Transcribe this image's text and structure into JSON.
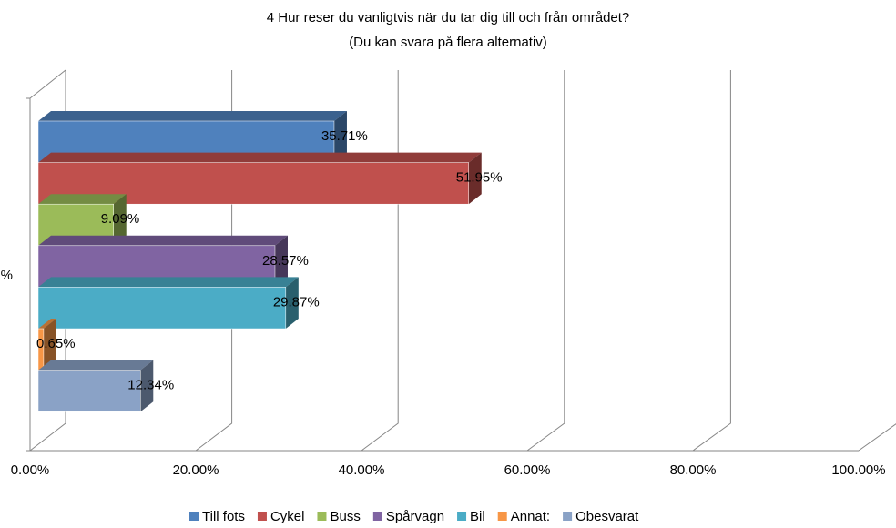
{
  "chart_data": {
    "type": "bar",
    "orientation": "horizontal",
    "title": "4 Hur reser du vanligtvis när du tar dig till och från området?",
    "subtitle": "(Du kan svara på flera alternativ)",
    "categories": [
      "%"
    ],
    "series": [
      {
        "name": "Till fots",
        "color": "#4f81bd",
        "values": [
          35.71
        ],
        "value_labels": [
          "35.71%"
        ]
      },
      {
        "name": "Cykel",
        "color": "#c0504d",
        "values": [
          51.95
        ],
        "value_labels": [
          "51.95%"
        ]
      },
      {
        "name": "Buss",
        "color": "#9bbb59",
        "values": [
          9.09
        ],
        "value_labels": [
          "9.09%"
        ]
      },
      {
        "name": "Spårvagn",
        "color": "#8064a2",
        "values": [
          28.57
        ],
        "value_labels": [
          "28.57%"
        ]
      },
      {
        "name": "Bil",
        "color": "#4bacc6",
        "values": [
          29.87
        ],
        "value_labels": [
          "29.87%"
        ]
      },
      {
        "name": "Annat:",
        "color": "#f79646",
        "values": [
          0.65
        ],
        "value_labels": [
          "0.65%"
        ]
      },
      {
        "name": "Obesvarat",
        "color": "#8aa2c6",
        "values": [
          12.34
        ],
        "value_labels": [
          "12.34%"
        ]
      }
    ],
    "xlim": [
      0,
      100
    ],
    "xticks": [
      {
        "value": 0,
        "label": "0.00%"
      },
      {
        "value": 20,
        "label": "20.00%"
      },
      {
        "value": 40,
        "label": "40.00%"
      },
      {
        "value": 60,
        "label": "60.00%"
      },
      {
        "value": 80,
        "label": "80.00%"
      },
      {
        "value": 100,
        "label": "100.00%"
      }
    ],
    "grid": true,
    "legend": "bottom"
  }
}
